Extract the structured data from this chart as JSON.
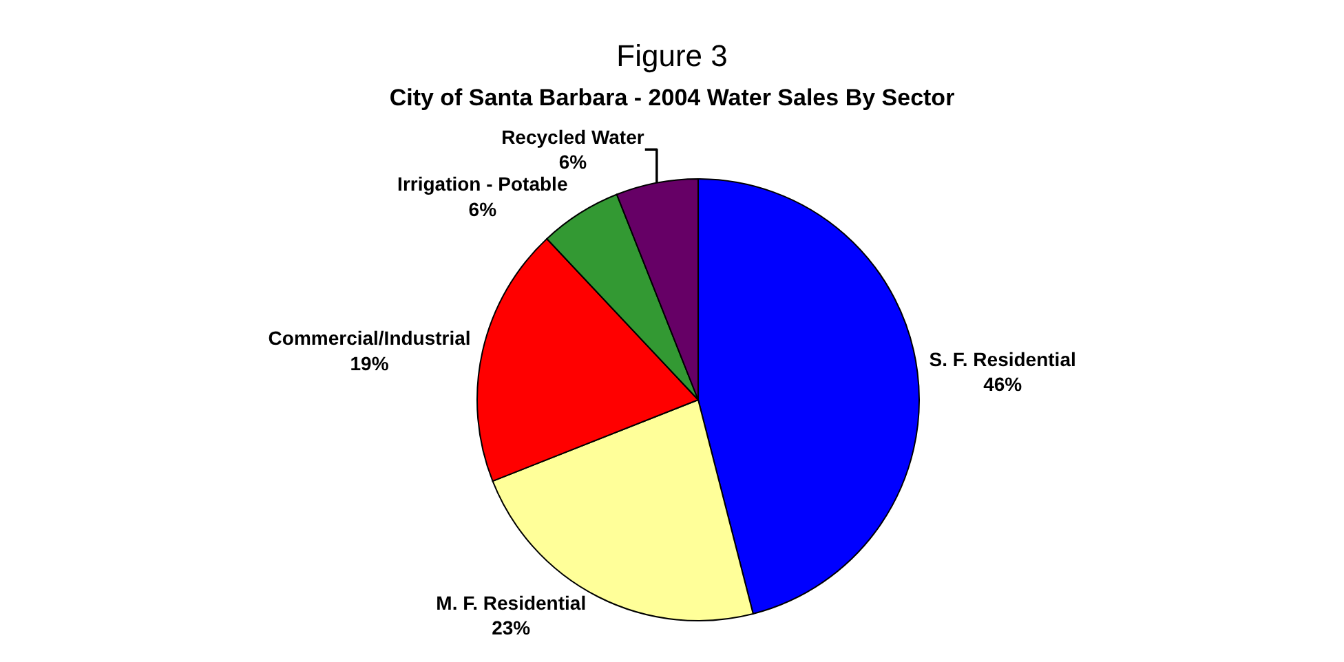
{
  "chart_data": {
    "type": "pie",
    "title": "Figure 3",
    "subtitle": "City of Santa Barbara - 2004 Water Sales By Sector",
    "categories": [
      "S. F. Residential",
      "M. F. Residential",
      "Commercial/Industrial",
      "Irrigation - Potable",
      "Recycled Water"
    ],
    "values": [
      46,
      23,
      19,
      6,
      6
    ],
    "value_labels": [
      "46%",
      "23%",
      "19%",
      "6%",
      "6%"
    ],
    "colors": [
      "#0000ff",
      "#ffff99",
      "#ff0000",
      "#339933",
      "#660066"
    ],
    "legend": false
  }
}
